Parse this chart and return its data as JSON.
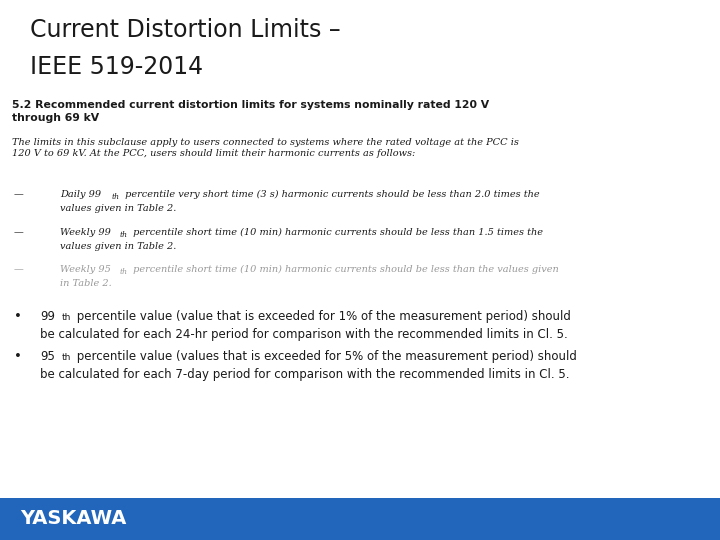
{
  "title_line1": "Current Distortion Limits –",
  "title_line2": "IEEE 519-2014",
  "section_heading_bold": "5.2 Recommended current distortion limits for systems nominally rated 120 V\nthrough 69 kV",
  "body_text": "The limits in this subclause apply to users connected to systems where the rated voltage at the PCC is\n120 V to 69 kV. At the PCC, users should limit their harmonic currents as follows:",
  "yaskawa_text": "YASKAWA",
  "bg_color": "#ffffff",
  "title_color": "#1a1a1a",
  "body_color": "#1a1a1a",
  "section_color": "#1a1a1a",
  "footer_bar_color": "#2266bb",
  "yaskawa_color": "#ffffff",
  "bullet3_color": "#999999",
  "title_fs": 17,
  "section_fs": 7.8,
  "body_fs": 7.0,
  "bullet_fs": 7.0,
  "footer_fs": 8.5
}
